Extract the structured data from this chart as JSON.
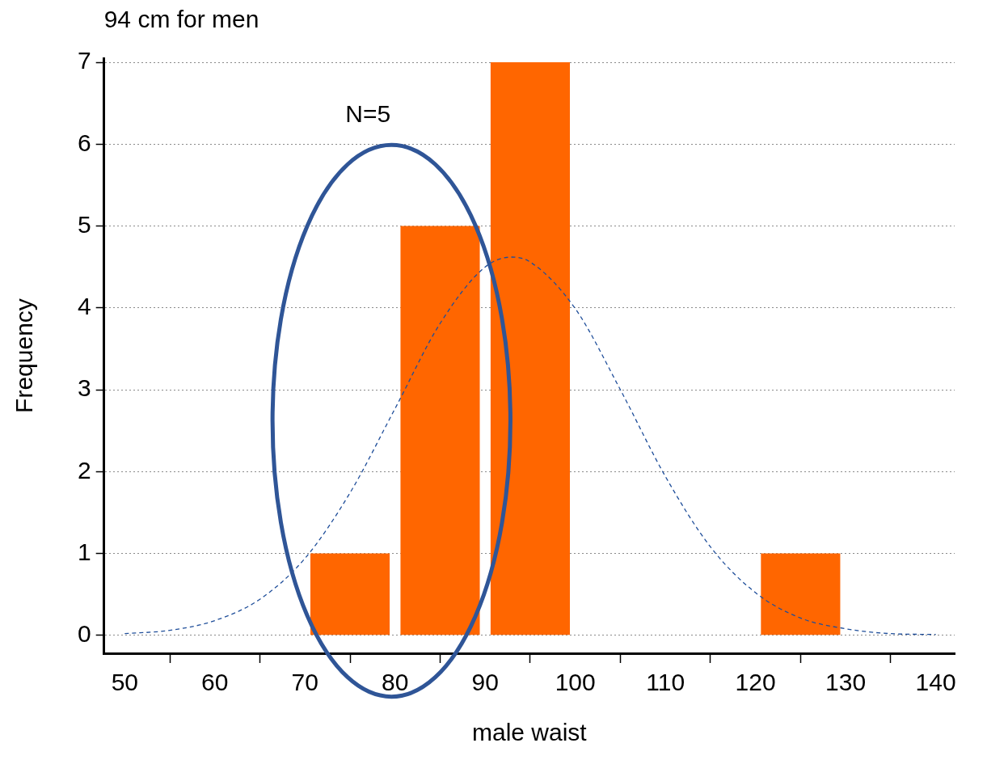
{
  "chart_data": {
    "type": "histogram",
    "title": "94 cm for men",
    "xlabel": "male waist",
    "ylabel": "Frequency",
    "bins": [
      70,
      80,
      90,
      100,
      110,
      120,
      130
    ],
    "values": [
      1,
      5,
      7,
      0,
      0,
      1
    ],
    "color": "#ff6600",
    "series": [
      {
        "type": "line",
        "color": "#1f4e9a",
        "line_style": "dashed",
        "x": [
          50,
          55,
          60,
          65,
          70,
          75,
          80,
          85,
          90,
          93,
          95,
          100,
          105,
          110,
          115,
          120,
          125,
          130,
          135,
          140
        ],
        "values": [
          0.02,
          0.06,
          0.18,
          0.44,
          0.94,
          1.74,
          2.77,
          3.81,
          4.5,
          4.62,
          4.56,
          3.99,
          3.0,
          1.94,
          1.08,
          0.52,
          0.21,
          0.08,
          0.02,
          0.01
        ]
      }
    ],
    "xlim": [
      47.7,
      142.1
    ],
    "ylim": [
      -0.22,
      7.05
    ],
    "xticks": [
      50,
      60,
      70,
      80,
      90,
      100,
      110,
      120,
      130,
      140
    ],
    "yticks": [
      0,
      1,
      2,
      3,
      4,
      5,
      6,
      7
    ],
    "grid": "y",
    "legend": false,
    "annotations": [
      "N=5"
    ]
  }
}
